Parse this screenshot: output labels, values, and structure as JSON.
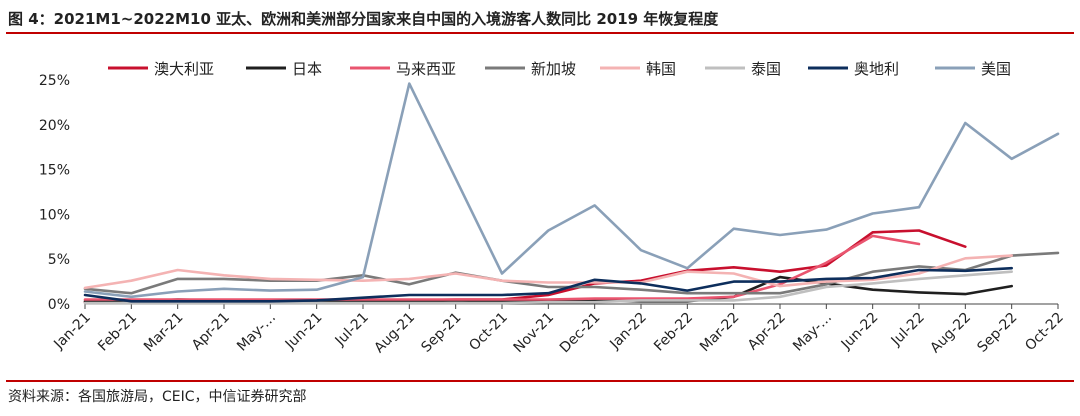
{
  "figure": {
    "title": "图 4：2021M1~2022M10 亚太、欧洲和美洲部分国家来自中国的入境游客人数同比 2019 年恢复程度",
    "source": "资料来源：各国旅游局，CEIC，中信证券研究部"
  },
  "chart_data": {
    "type": "line",
    "ylim": [
      0,
      25
    ],
    "yticks": [
      0,
      5,
      10,
      15,
      20,
      25
    ],
    "ytick_labels": [
      "0%",
      "5%",
      "10%",
      "15%",
      "20%",
      "25%"
    ],
    "legend_position": "top",
    "grid": false,
    "categories": [
      "Jan-21",
      "Feb-21",
      "Mar-21",
      "Apr-21",
      "May-…",
      "Jun-21",
      "Jul-21",
      "Aug-21",
      "Sep-21",
      "Oct-21",
      "Nov-21",
      "Dec-21",
      "Jan-22",
      "Feb-22",
      "Mar-22",
      "Apr-22",
      "May-…",
      "Jun-22",
      "Jul-22",
      "Aug-22",
      "Sep-22",
      "Oct-22"
    ],
    "series": [
      {
        "name": "澳大利亚",
        "color": "#c8102e",
        "values": [
          0.2,
          0.2,
          0.2,
          0.3,
          0.3,
          0.3,
          0.3,
          0.4,
          0.5,
          0.5,
          1.0,
          2.3,
          2.6,
          3.7,
          4.1,
          3.6,
          4.3,
          8.0,
          8.2,
          6.4,
          null,
          null
        ]
      },
      {
        "name": "日本",
        "color": "#1f1f1f",
        "values": [
          0.3,
          0.3,
          0.5,
          0.4,
          0.3,
          0.3,
          0.3,
          0.3,
          0.4,
          0.3,
          0.3,
          0.4,
          0.3,
          0.3,
          0.8,
          3.0,
          2.3,
          1.6,
          1.3,
          1.1,
          2.0,
          null
        ]
      },
      {
        "name": "马来西亚",
        "color": "#e9556f",
        "values": [
          0.5,
          0.5,
          0.5,
          0.5,
          0.5,
          0.5,
          0.5,
          0.5,
          0.5,
          0.5,
          0.5,
          0.6,
          0.6,
          0.6,
          0.8,
          2.2,
          4.6,
          7.6,
          6.7,
          null,
          null,
          null
        ]
      },
      {
        "name": "新加坡",
        "color": "#7a7a7a",
        "values": [
          1.7,
          1.2,
          2.8,
          2.8,
          2.6,
          2.6,
          3.2,
          2.2,
          3.5,
          2.6,
          1.9,
          1.9,
          1.6,
          1.2,
          1.2,
          1.2,
          2.2,
          3.6,
          4.2,
          3.8,
          5.4,
          5.7
        ]
      },
      {
        "name": "韩国",
        "color": "#f4b3b3",
        "values": [
          1.8,
          2.6,
          3.8,
          3.2,
          2.8,
          2.7,
          2.6,
          2.8,
          3.4,
          2.6,
          2.4,
          2.4,
          2.4,
          3.6,
          3.4,
          2.0,
          2.5,
          2.7,
          3.4,
          5.1,
          5.4,
          null
        ]
      },
      {
        "name": "泰国",
        "color": "#bfbfbf",
        "values": [
          0.1,
          0.1,
          0.1,
          0.1,
          0.1,
          0.1,
          0.1,
          0.1,
          0.1,
          0.1,
          0.2,
          0.2,
          0.4,
          0.4,
          0.4,
          0.8,
          1.9,
          2.3,
          2.8,
          3.2,
          3.6,
          null
        ]
      },
      {
        "name": "奥地利",
        "color": "#0d2e5c",
        "values": [
          1.0,
          0.3,
          0.3,
          0.3,
          0.3,
          0.4,
          0.7,
          1.0,
          1.0,
          1.0,
          1.2,
          2.7,
          2.3,
          1.5,
          2.5,
          2.5,
          2.8,
          2.9,
          3.8,
          3.7,
          4.0,
          null
        ]
      },
      {
        "name": "美国",
        "color": "#8aa0b8",
        "values": [
          1.4,
          0.8,
          1.4,
          1.7,
          1.5,
          1.6,
          3.0,
          24.6,
          14.0,
          3.4,
          8.2,
          11.0,
          6.0,
          4.0,
          8.4,
          7.7,
          8.3,
          10.1,
          10.8,
          20.2,
          16.2,
          19.0
        ]
      }
    ]
  }
}
